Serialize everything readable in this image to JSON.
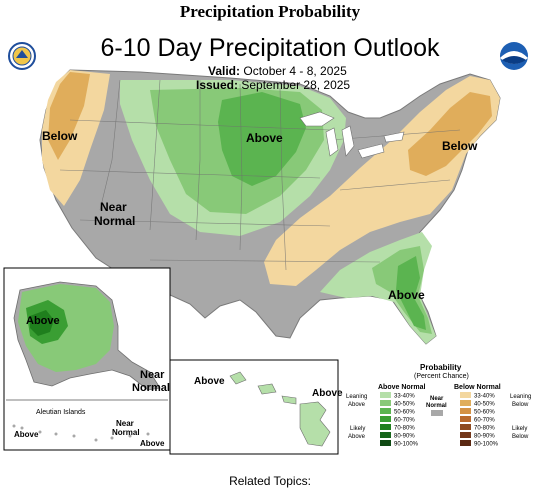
{
  "page": {
    "heading": "Precipitation Probability",
    "related_topics": "Related Topics:"
  },
  "map": {
    "title": "6-10 Day Precipitation Outlook",
    "valid_label": "Valid:",
    "valid_dates": "October 4 - 8, 2025",
    "issued_label": "Issued:",
    "issued_date": "September 28, 2025",
    "region_labels": {
      "northwest": "Below",
      "west": "Near\nNormal",
      "north_central": "Above",
      "northeast": "Below",
      "southeast": "Above",
      "alaska": "Above",
      "alaska_southeast": "Near\nNormal",
      "hawaii_west": "Above",
      "hawaii_east": "Above",
      "aleutian_title": "Aleutian Islands",
      "aleutian_west": "Above",
      "aleutian_mid": "Near\nNormal",
      "aleutian_east": "Above"
    }
  },
  "legend": {
    "title": "Probability",
    "subtitle": "(Percent Chance)",
    "above_header": "Above Normal",
    "below_header": "Below Normal",
    "near_label": "Near\nNormal",
    "leaning_above": "Leaning\nAbove",
    "likely_above": "Likely\nAbove",
    "leaning_below": "Leaning\nBelow",
    "likely_below": "Likely\nBelow",
    "ranges": [
      "33-40%",
      "40-50%",
      "50-60%",
      "60-70%",
      "70-80%",
      "80-90%",
      "90-100%"
    ],
    "above_colors": [
      "#b5dfa9",
      "#88c978",
      "#5bb450",
      "#3a9e33",
      "#1f7f1d",
      "#16651a",
      "#0f4a14"
    ],
    "below_colors": [
      "#f3d79f",
      "#e0ad5b",
      "#d49245",
      "#b96a2e",
      "#8e4a20",
      "#733619",
      "#5a2812"
    ],
    "near_color": "#a8a8a8"
  },
  "logos": {
    "left_icon": "noaa-nws-seal-icon",
    "right_icon": "noaa-logo-icon"
  }
}
